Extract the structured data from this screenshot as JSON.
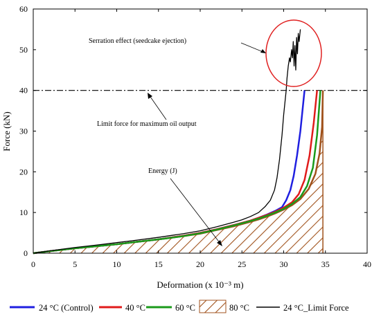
{
  "chart_data": {
    "type": "line",
    "xlabel": "Deformation (x 10⁻³ m)",
    "ylabel": "Force (kN)",
    "xlim": [
      0,
      40
    ],
    "ylim": [
      0,
      60
    ],
    "xticks": [
      0,
      5,
      10,
      15,
      20,
      25,
      30,
      35,
      40
    ],
    "yticks": [
      0,
      10,
      20,
      30,
      40,
      50,
      60
    ],
    "grid": false,
    "legend_position": "bottom",
    "series": [
      {
        "name": "24 °C (Control)",
        "color": "#1f1fe0",
        "style": "solid",
        "x": [
          0,
          2,
          5,
          8,
          10,
          12,
          15,
          18,
          20,
          22,
          24,
          26,
          27,
          28,
          29,
          29.8,
          30.3,
          30.8,
          31.2,
          31.6,
          32.0,
          32.3,
          32.5
        ],
        "y": [
          0,
          0.5,
          1.2,
          1.8,
          2.2,
          2.7,
          3.4,
          4.3,
          5.0,
          5.9,
          6.9,
          8.0,
          8.7,
          9.5,
          10.4,
          11.3,
          13,
          15.5,
          19,
          24,
          30,
          36,
          40
        ]
      },
      {
        "name": "40 °C",
        "color": "#e01b1b",
        "style": "solid",
        "x": [
          0,
          2,
          5,
          8,
          10,
          12,
          15,
          18,
          20,
          22,
          24,
          26,
          27,
          28,
          29,
          30,
          31,
          31.8,
          32.5,
          33.1,
          33.6,
          34.0
        ],
        "y": [
          0,
          0.5,
          1.2,
          1.8,
          2.2,
          2.7,
          3.4,
          4.3,
          5.0,
          5.9,
          6.9,
          8.0,
          8.7,
          9.4,
          10.2,
          11.2,
          12.5,
          14.5,
          18,
          24,
          32,
          40
        ]
      },
      {
        "name": "60 °C",
        "color": "#1a9a1a",
        "style": "solid",
        "x": [
          0,
          2,
          5,
          8,
          10,
          12,
          15,
          18,
          20,
          22,
          24,
          26,
          27,
          28,
          29,
          30,
          31,
          32,
          32.8,
          33.5,
          34.0,
          34.4
        ],
        "y": [
          0,
          0.5,
          1.2,
          1.8,
          2.2,
          2.7,
          3.4,
          4.2,
          4.9,
          5.8,
          6.8,
          7.9,
          8.5,
          9.2,
          10.0,
          10.9,
          12.1,
          13.8,
          16.5,
          21,
          29,
          40
        ]
      },
      {
        "name": "80 °C",
        "color": "#a0521c",
        "style": "hatched-area",
        "x": [
          0,
          2,
          5,
          8,
          10,
          12,
          15,
          18,
          20,
          22,
          24,
          26,
          27,
          28,
          29,
          30,
          31,
          32,
          33,
          33.8,
          34.3,
          34.6,
          34.7
        ],
        "y": [
          0,
          0.5,
          1.2,
          1.8,
          2.2,
          2.7,
          3.4,
          4.2,
          4.8,
          5.7,
          6.6,
          7.7,
          8.3,
          9.0,
          9.8,
          10.7,
          11.8,
          13.3,
          15.8,
          19.5,
          24.5,
          31,
          40
        ]
      },
      {
        "name": "24 °C_Limit Force",
        "color": "#000000",
        "style": "solid",
        "x": [
          0,
          2,
          5,
          8,
          10,
          12,
          15,
          18,
          20,
          22,
          24,
          25,
          26,
          27,
          27.8,
          28.4,
          28.9,
          29.2,
          29.5,
          29.8,
          30.0,
          30.2,
          30.3,
          30.4,
          30.55,
          30.7,
          30.8,
          30.95,
          31.05,
          31.15,
          31.25,
          31.35,
          31.45,
          31.55,
          31.65,
          31.75,
          31.85,
          32.0
        ],
        "y": [
          0,
          0.6,
          1.4,
          2.1,
          2.6,
          3.1,
          3.9,
          4.8,
          5.5,
          6.5,
          7.6,
          8.2,
          9.0,
          10.0,
          11.5,
          13.0,
          15.5,
          18.5,
          23,
          29,
          34,
          38,
          40,
          43,
          46,
          48,
          47,
          50,
          48,
          52,
          46,
          51,
          45,
          53,
          49,
          54,
          52,
          55
        ]
      }
    ],
    "reference_lines": [
      {
        "name": "limit-force-line",
        "y": 40,
        "style": "dash-dot",
        "color": "#000000"
      }
    ],
    "annotations": [
      {
        "text": "Serration effect (seedcake ejection)",
        "x": 13,
        "y": 52
      },
      {
        "text": "Limit force for maximum oil output",
        "x": 15.5,
        "y": 32.5
      },
      {
        "text": "Energy (J)",
        "x": 18,
        "y": 20
      }
    ]
  }
}
